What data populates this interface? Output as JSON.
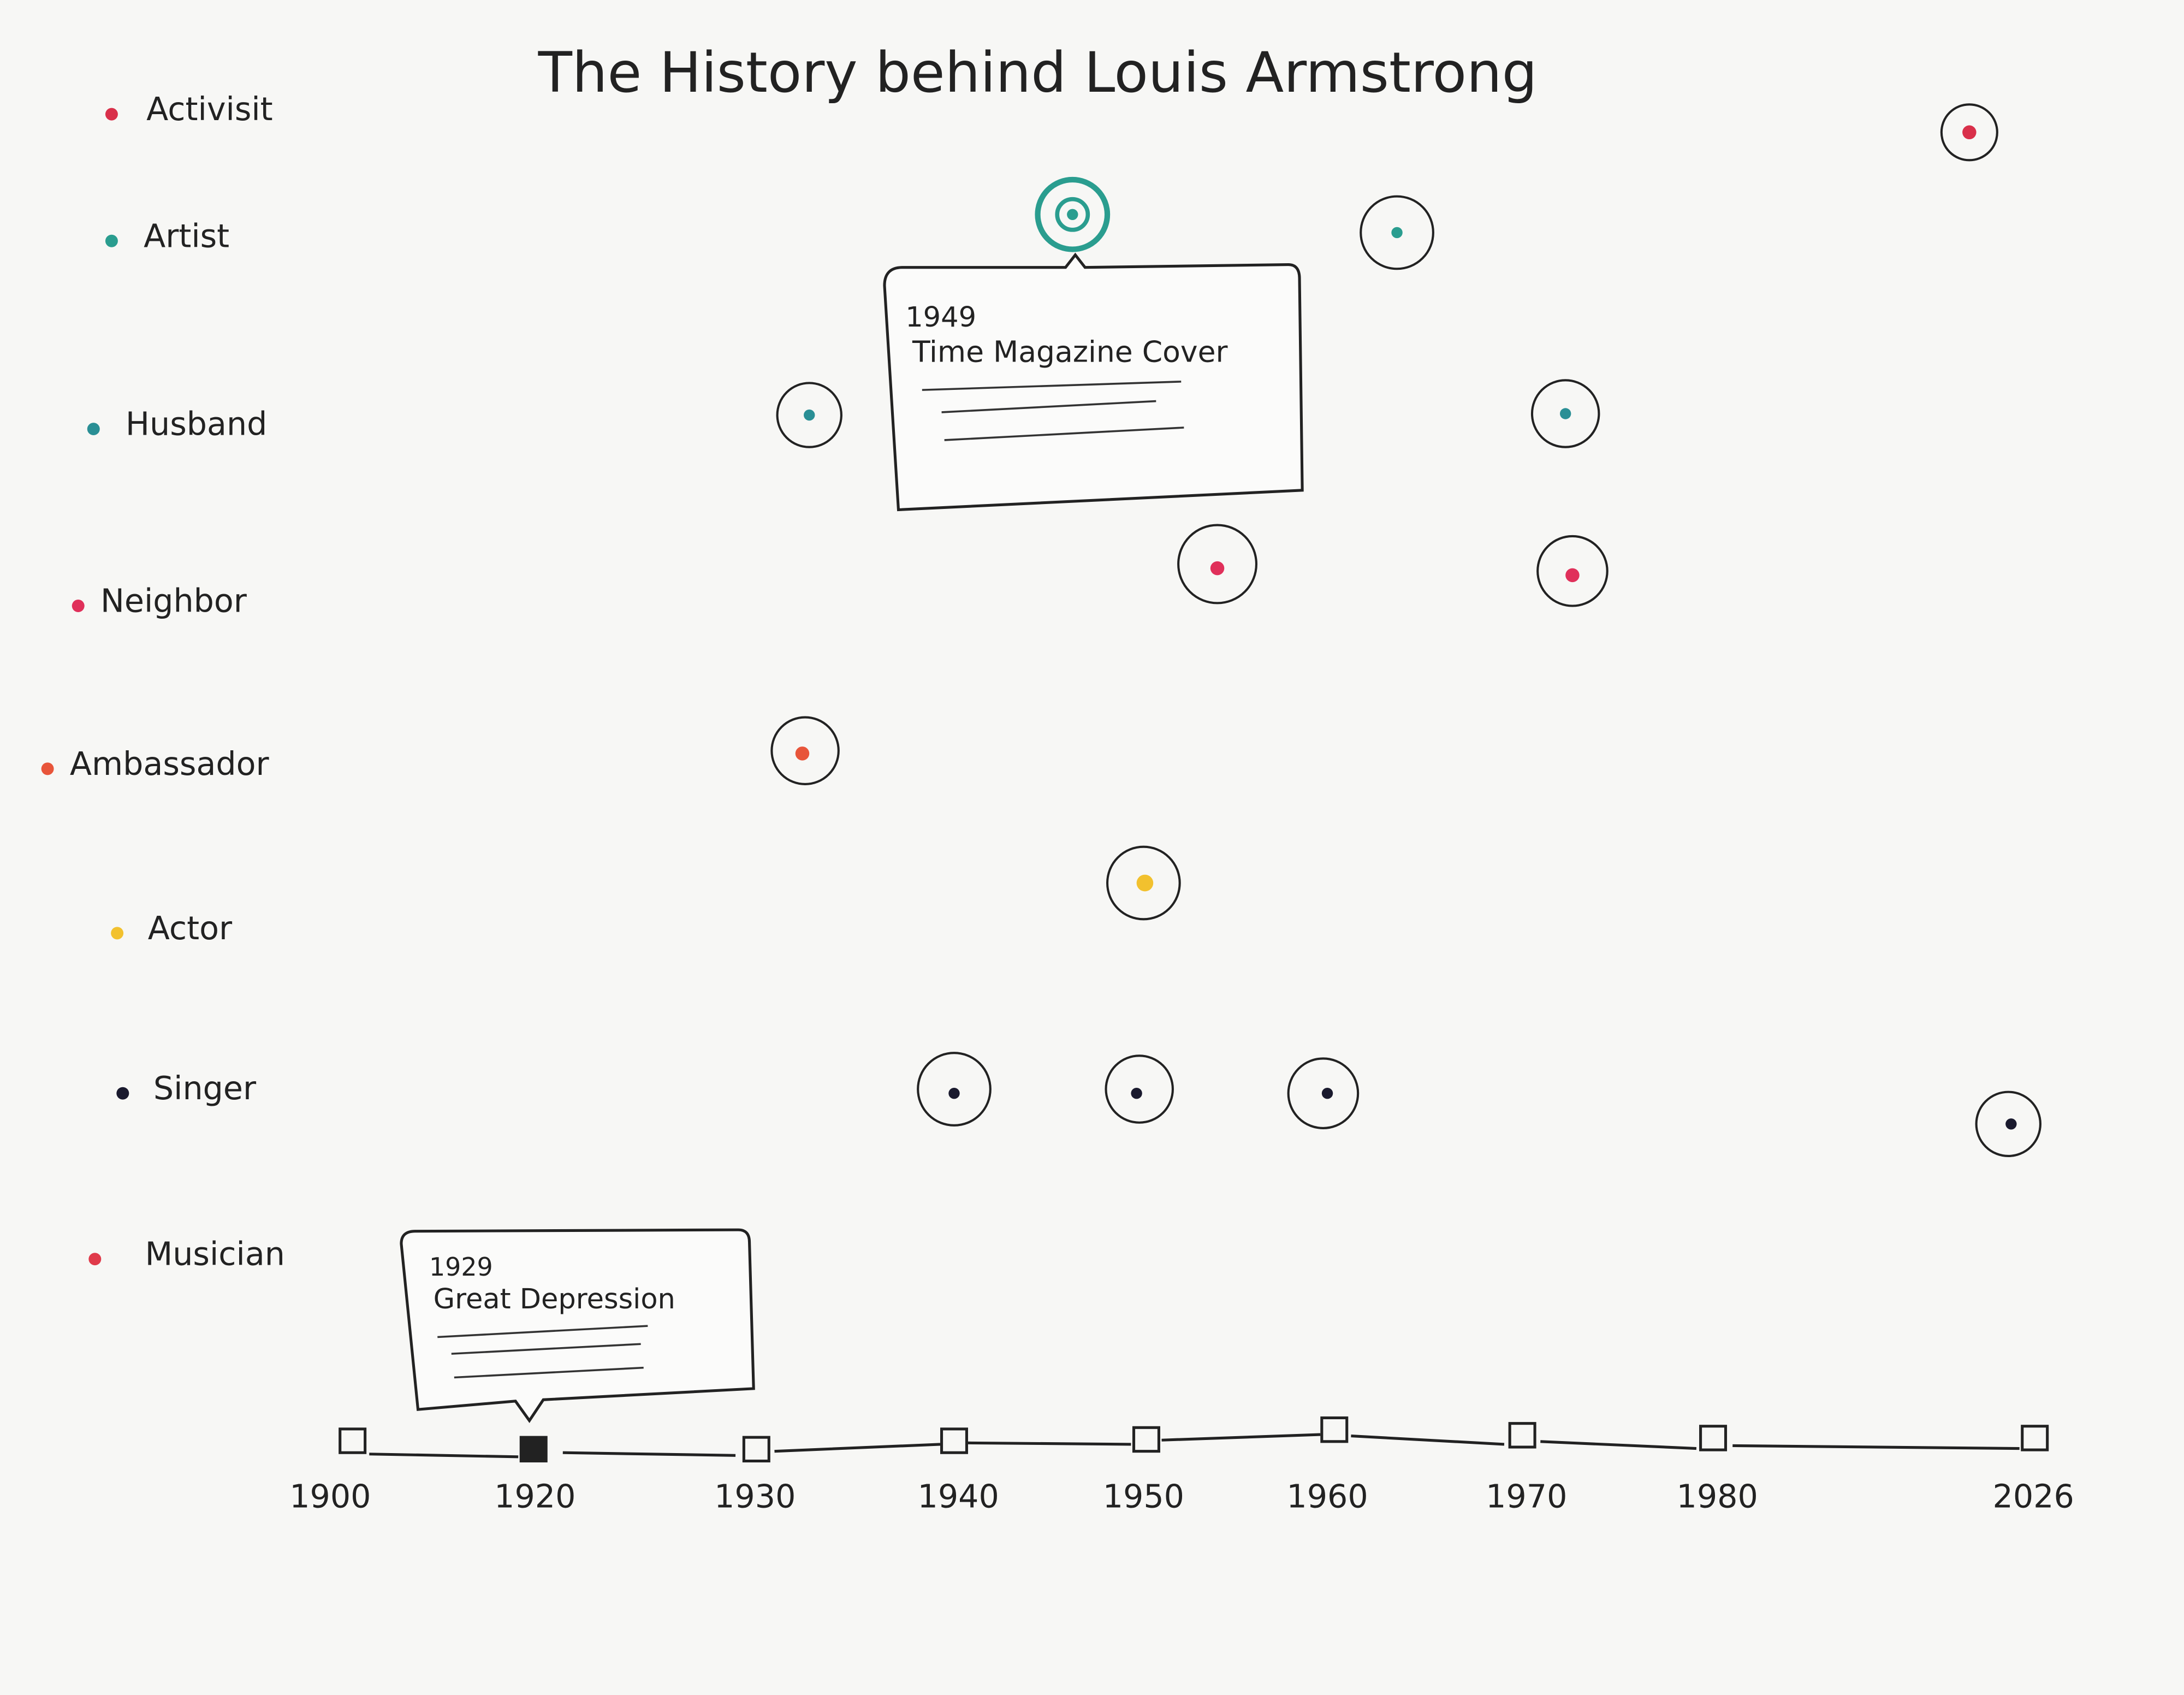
{
  "header": {
    "title": "The History behind Louis Armstrong"
  },
  "roles": [
    {
      "label": "Activisit",
      "color": "#d9304a"
    },
    {
      "label": "Artist",
      "color": "#2a9d8f"
    },
    {
      "label": "Husband",
      "color": "#2a8f95"
    },
    {
      "label": "Neighbor",
      "color": "#e0305a"
    },
    {
      "label": "Ambassador",
      "color": "#e8553a"
    },
    {
      "label": "Actor",
      "color": "#f2c12e"
    },
    {
      "label": "Singer",
      "color": "#1a1a2e"
    },
    {
      "label": "Musician",
      "color": "#e03a4a"
    }
  ],
  "tooltips": [
    {
      "year": "1949",
      "text": "Time Magazine Cover"
    },
    {
      "year": "1929",
      "text": "Great Depression"
    }
  ],
  "timeline": [
    "1900",
    "1920",
    "1930",
    "1940",
    "1950",
    "1960",
    "1970",
    "1980",
    "2026"
  ]
}
